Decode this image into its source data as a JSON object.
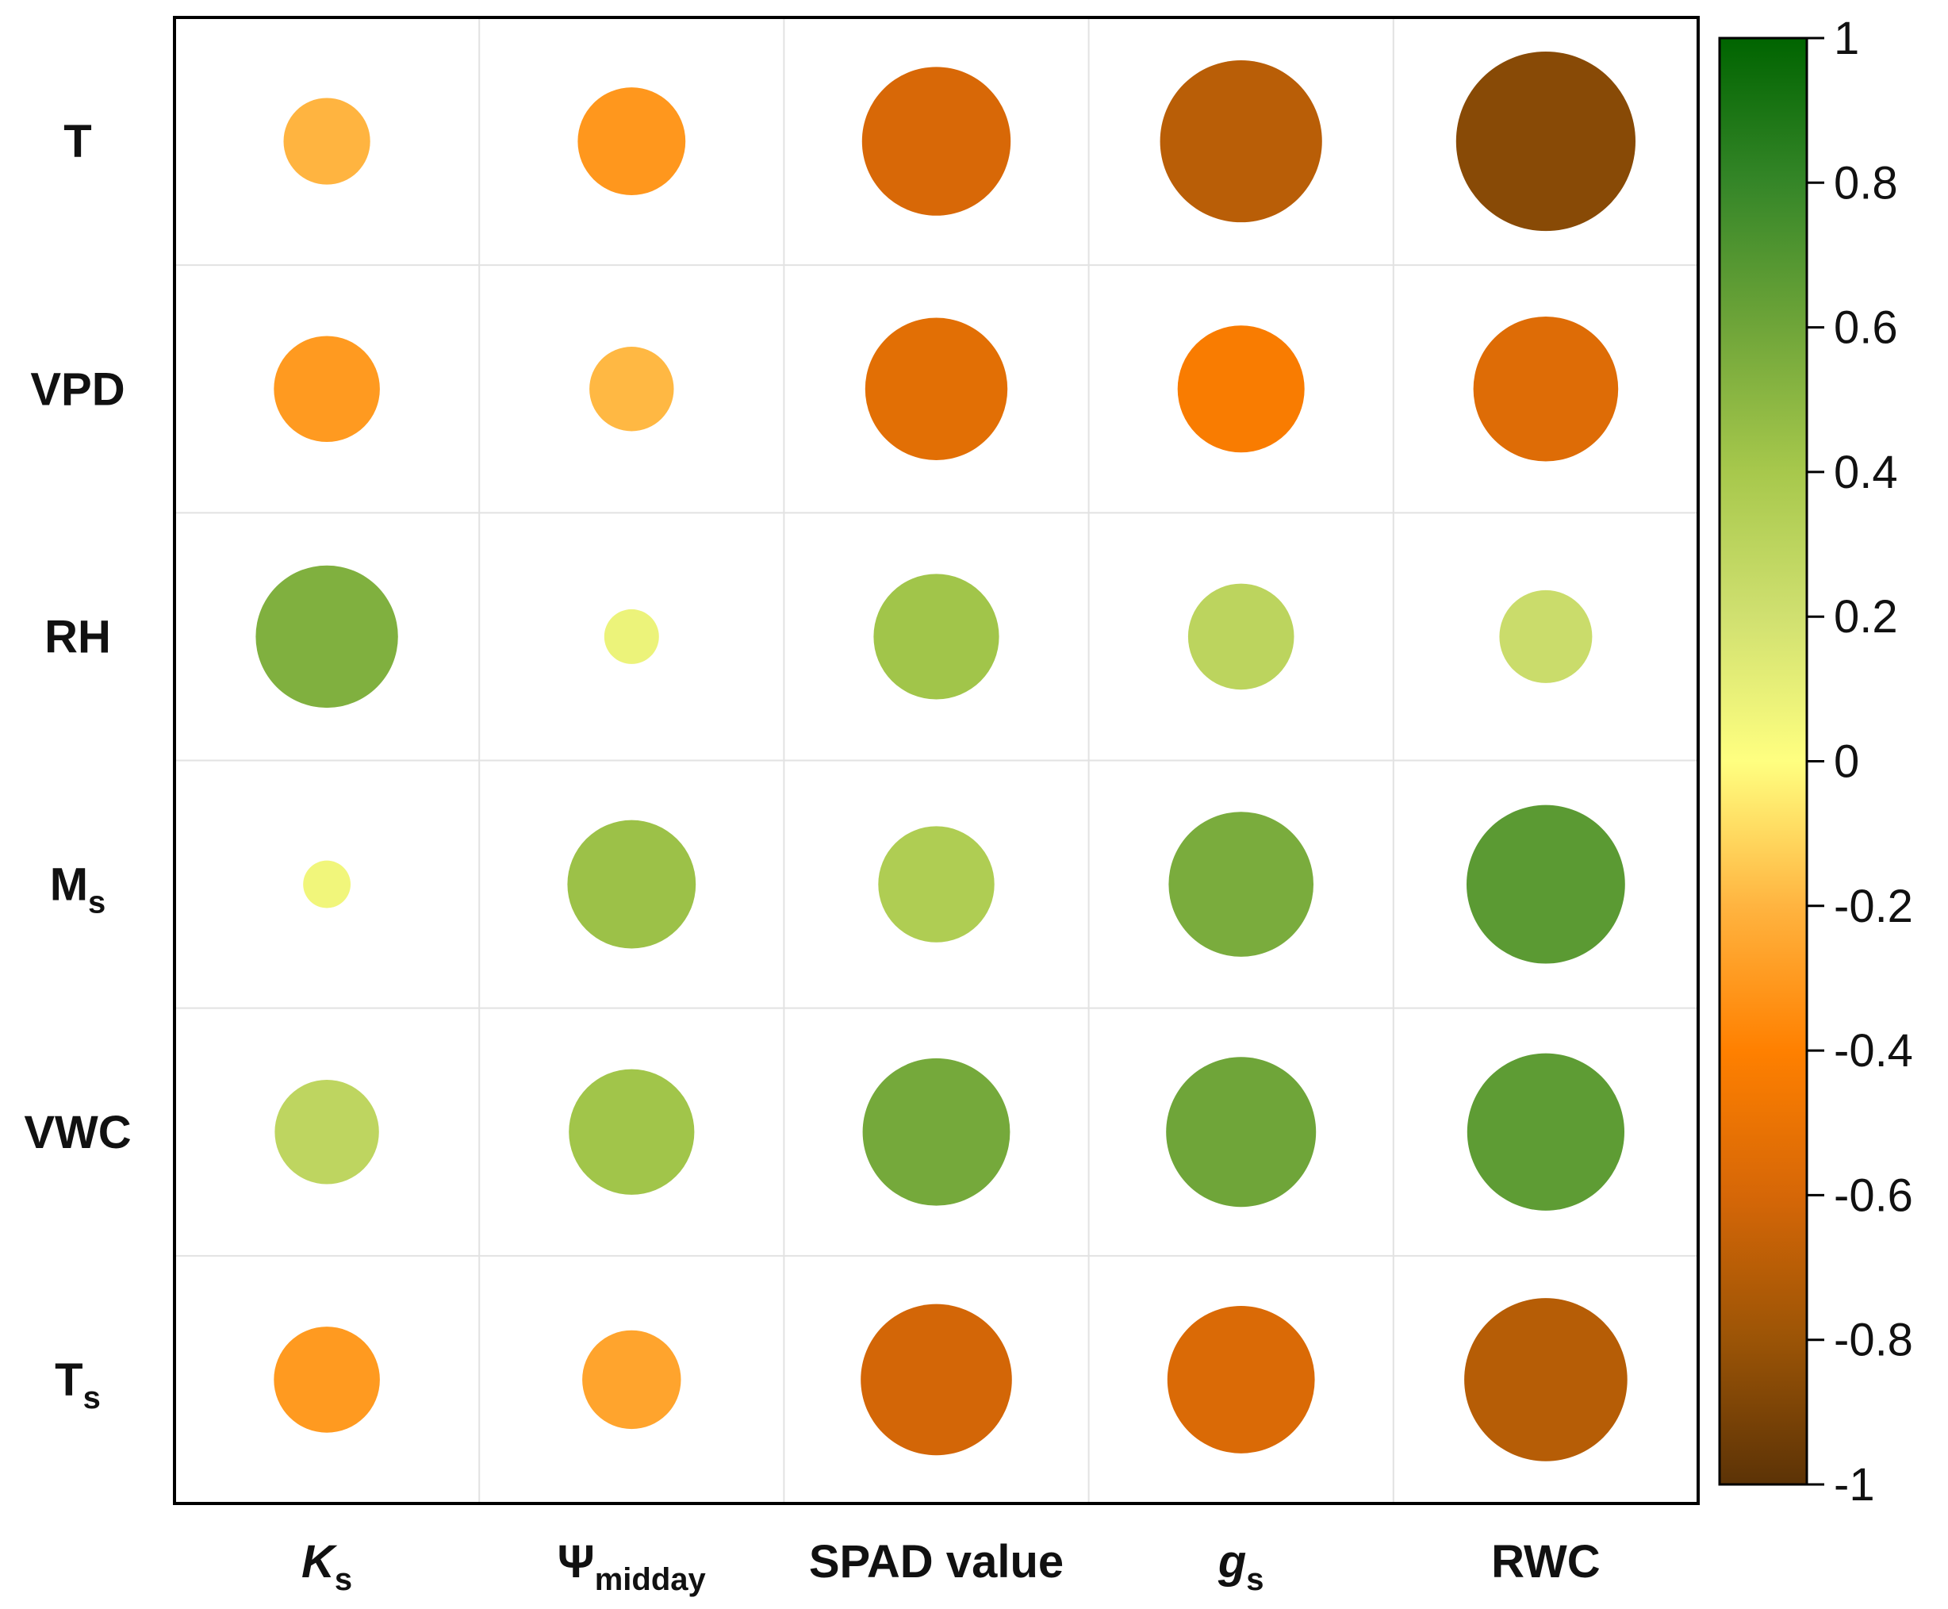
{
  "chart_data": {
    "type": "correlation-matrix",
    "rows": [
      {
        "key": "T",
        "text": "T",
        "sub": ""
      },
      {
        "key": "VPD",
        "text": "VPD",
        "sub": ""
      },
      {
        "key": "RH",
        "text": "RH",
        "sub": ""
      },
      {
        "key": "Ms",
        "text": "M",
        "sub": "s"
      },
      {
        "key": "VWC",
        "text": "VWC",
        "sub": ""
      },
      {
        "key": "Ts",
        "text": "T",
        "sub": "s"
      }
    ],
    "columns": [
      {
        "key": "Ks",
        "text": "K",
        "sub": "s",
        "italic": true
      },
      {
        "key": "Psi_midday",
        "text": "Ψ",
        "sub": "midday",
        "italic": false
      },
      {
        "key": "SPAD",
        "text": "SPAD value",
        "sub": "",
        "italic": false
      },
      {
        "key": "gs",
        "text": "g",
        "sub": "s",
        "italic": true
      },
      {
        "key": "RWC",
        "text": "RWC",
        "sub": "",
        "italic": false
      }
    ],
    "values": [
      [
        -0.2,
        -0.31,
        -0.59,
        -0.7,
        -0.86
      ],
      [
        -0.3,
        -0.19,
        -0.54,
        -0.43,
        -0.56
      ],
      [
        0.54,
        0.08,
        0.42,
        0.3,
        0.23
      ],
      [
        0.06,
        0.44,
        0.36,
        0.56,
        0.67
      ],
      [
        0.29,
        0.42,
        0.58,
        0.6,
        0.66
      ],
      [
        -0.3,
        -0.26,
        -0.61,
        -0.58,
        -0.71
      ]
    ],
    "colorbar": {
      "range": [
        -1,
        1
      ],
      "ticks": [
        "1",
        "0.8",
        "0.6",
        "0.4",
        "0.2",
        "0",
        "-0.2",
        "-0.4",
        "-0.6",
        "-0.8",
        "-1"
      ],
      "colors": {
        "-1": "#5c3306",
        "-0.8": "#9b5406",
        "-0.6": "#d66707",
        "-0.4": "#ff8000",
        "-0.2": "#ffb440",
        "0": "#ffff80",
        "0.2": "#d0e070",
        "0.4": "#a7c84c",
        "0.6": "#6fa539",
        "0.8": "#358628",
        "1": "#006400"
      }
    }
  }
}
